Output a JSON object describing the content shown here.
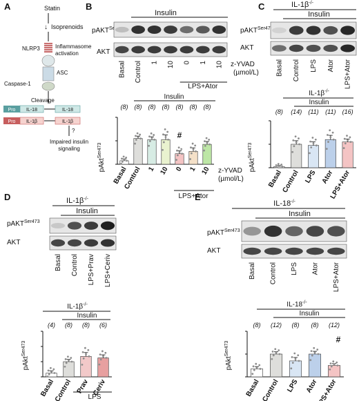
{
  "panelA": {
    "letter": "A",
    "statin": "Statin",
    "isoprenoids": "Isoprenoids",
    "nlrp3": "NLRP3",
    "inflammasome": [
      "Inflammasome",
      "activation"
    ],
    "asc": "ASC",
    "caspase": "Caspase-1",
    "cleavage": "Cleavage",
    "pro": "Pro",
    "il18": "IL-18",
    "il1b": "IL-1β",
    "impaired": [
      "Impaired insulin",
      "signaling"
    ]
  },
  "panelB": {
    "letter": "B",
    "insulin": "Insulin",
    "blot_labels": [
      "pAKT",
      "AKT"
    ],
    "ser": "Ser473",
    "lanes": [
      "Basal",
      "Control",
      "1",
      "10",
      "0",
      "1",
      "10"
    ],
    "group": "LPS+Ator",
    "zyvad": [
      "z-YVAD",
      "(µmol/L)"
    ],
    "hash_index": 4,
    "chart_data": {
      "type": "bar",
      "ylabel": "pAkt^Ser473/Akt (AU)",
      "categories": [
        "Basal",
        "Control",
        "1",
        "10",
        "0",
        "1",
        "10"
      ],
      "values": [
        0.15,
        1.1,
        1.05,
        1.05,
        0.45,
        0.55,
        0.85
      ],
      "errors": [
        0.08,
        0.1,
        0.12,
        0.2,
        0.12,
        0.15,
        0.12
      ],
      "n": [
        "(8)",
        "(8)",
        "(8)",
        "(8)",
        "(8)",
        "(8)",
        "(8)"
      ],
      "colors": [
        "#ffffff",
        "#dededb",
        "#d7ece4",
        "#e9f2cf",
        "#f4c4c4",
        "#f4e0c8",
        "#bde6a6"
      ],
      "ylim": [
        0,
        2
      ],
      "significance": "#",
      "insulin": "Insulin",
      "group": "LPS+Ator",
      "unit": [
        "z-YVAD",
        "(µmol/L)"
      ]
    }
  },
  "panelC": {
    "letter": "C",
    "genotype": "IL-1β",
    "insulin": "Insulin",
    "blot_labels": [
      "pAKT",
      "AKT"
    ],
    "ser": "Ser473",
    "lanes": [
      "Basal",
      "Control",
      "LPS",
      "Ator",
      "LPS+Ator"
    ],
    "chart_data": {
      "type": "bar",
      "title": "IL-1β",
      "ylabel": "pAkt^Ser473 / Akt (AU)",
      "categories": [
        "Basal",
        "Control",
        "LPS",
        "Ator",
        "LPS+Ator"
      ],
      "values": [
        0.05,
        1.0,
        0.95,
        1.2,
        1.1
      ],
      "errors": [
        0.05,
        0.15,
        0.15,
        0.18,
        0.12
      ],
      "n": [
        "(8)",
        "(14)",
        "(11)",
        "(11)",
        "(16)"
      ],
      "colors": [
        "#ffffff",
        "#dededb",
        "#d9e6f4",
        "#bcd0ea",
        "#f4c4c4"
      ],
      "ylim": [
        0,
        2
      ],
      "insulin": "Insulin"
    }
  },
  "panelD": {
    "letter": "D",
    "genotype": "IL-1β",
    "insulin": "Insulin",
    "blot_labels": [
      "pAKT",
      "AKT"
    ],
    "ser": "Ser473",
    "lanes": [
      "Basal",
      "Control",
      "LPS+Prav",
      "LPS+Ceriv"
    ],
    "chart_data": {
      "type": "bar",
      "title": "IL-1β",
      "ylabel": "pAkt^Ser473 / Akt (AU)",
      "categories": [
        "Basal",
        "Control",
        "Prav",
        "Ceriv"
      ],
      "values": [
        0.25,
        1.0,
        1.35,
        1.25
      ],
      "errors": [
        0.15,
        0.15,
        0.25,
        0.2
      ],
      "n": [
        "(4)",
        "(8)",
        "(8)",
        "(6)"
      ],
      "colors": [
        "#ffffff",
        "#dededb",
        "#f2c9c9",
        "#e7a0a0"
      ],
      "ylim": [
        0,
        3
      ],
      "insulin": "Insulin",
      "group": "LPS"
    }
  },
  "panelE": {
    "letter": "E",
    "genotype": "IL-18",
    "insulin": "Insulin",
    "blot_labels": [
      "pAKT",
      "AKT"
    ],
    "ser": "Ser473",
    "lanes": [
      "Basal",
      "Control",
      "LPS",
      "Ator",
      "LPS+Ator"
    ],
    "hash_index": 4,
    "chart_data": {
      "type": "bar",
      "title": "IL-18",
      "ylabel": "pAkt^Ser473 / Akt (AU)",
      "categories": [
        "Basal",
        "Control",
        "LPS",
        "Ator",
        "LPS+Ator"
      ],
      "values": [
        0.35,
        1.0,
        0.7,
        1.0,
        0.5
      ],
      "errors": [
        0.1,
        0.1,
        0.15,
        0.12,
        0.08
      ],
      "n": [
        "(8)",
        "(12)",
        "(8)",
        "(8)",
        "(12)"
      ],
      "colors": [
        "#ffffff",
        "#dededb",
        "#d9e6f4",
        "#bcd0ea",
        "#f4c4c4"
      ],
      "ylim": [
        0,
        2
      ],
      "significance": "#",
      "insulin": "Insulin"
    }
  }
}
